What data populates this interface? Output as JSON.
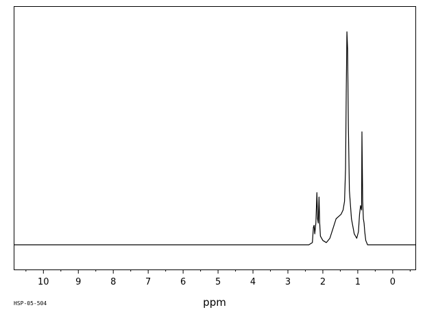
{
  "chart_data": {
    "type": "line",
    "title": "",
    "xlabel": "ppm",
    "ylabel": "",
    "x_reversed": true,
    "xlim": [
      10.85,
      -0.65
    ],
    "ylim": [
      0,
      1
    ],
    "x_ticks": [
      10,
      9,
      8,
      7,
      6,
      5,
      4,
      3,
      2,
      1,
      0
    ],
    "x_tick_labels": [
      "10",
      "9",
      "8",
      "7",
      "6",
      "5",
      "4",
      "3",
      "2",
      "1",
      "0"
    ],
    "grid": false,
    "series": [
      {
        "values": [
          [
            10.85,
            0.0
          ],
          [
            2.4,
            0.0
          ],
          [
            2.3,
            0.01
          ],
          [
            2.27,
            0.08
          ],
          [
            2.25,
            0.09
          ],
          [
            2.23,
            0.05
          ],
          [
            2.2,
            0.1
          ],
          [
            2.17,
            0.24
          ],
          [
            2.15,
            0.12
          ],
          [
            2.13,
            0.1
          ],
          [
            2.11,
            0.22
          ],
          [
            2.09,
            0.1
          ],
          [
            2.07,
            0.04
          ],
          [
            2.0,
            0.02
          ],
          [
            1.9,
            0.01
          ],
          [
            1.8,
            0.03
          ],
          [
            1.7,
            0.08
          ],
          [
            1.62,
            0.12
          ],
          [
            1.55,
            0.13
          ],
          [
            1.48,
            0.14
          ],
          [
            1.42,
            0.16
          ],
          [
            1.38,
            0.2
          ],
          [
            1.35,
            0.35
          ],
          [
            1.33,
            0.7
          ],
          [
            1.31,
            0.98
          ],
          [
            1.29,
            0.9
          ],
          [
            1.27,
            0.55
          ],
          [
            1.24,
            0.25
          ],
          [
            1.18,
            0.12
          ],
          [
            1.1,
            0.05
          ],
          [
            1.03,
            0.03
          ],
          [
            0.98,
            0.06
          ],
          [
            0.95,
            0.14
          ],
          [
            0.92,
            0.18
          ],
          [
            0.89,
            0.16
          ],
          [
            0.88,
            0.52
          ],
          [
            0.86,
            0.2
          ],
          [
            0.84,
            0.12
          ],
          [
            0.82,
            0.1
          ],
          [
            0.8,
            0.06
          ],
          [
            0.77,
            0.02
          ],
          [
            0.72,
            0.0
          ],
          [
            -0.65,
            0.0
          ]
        ]
      }
    ],
    "footer_text": "HSP-05-504"
  }
}
